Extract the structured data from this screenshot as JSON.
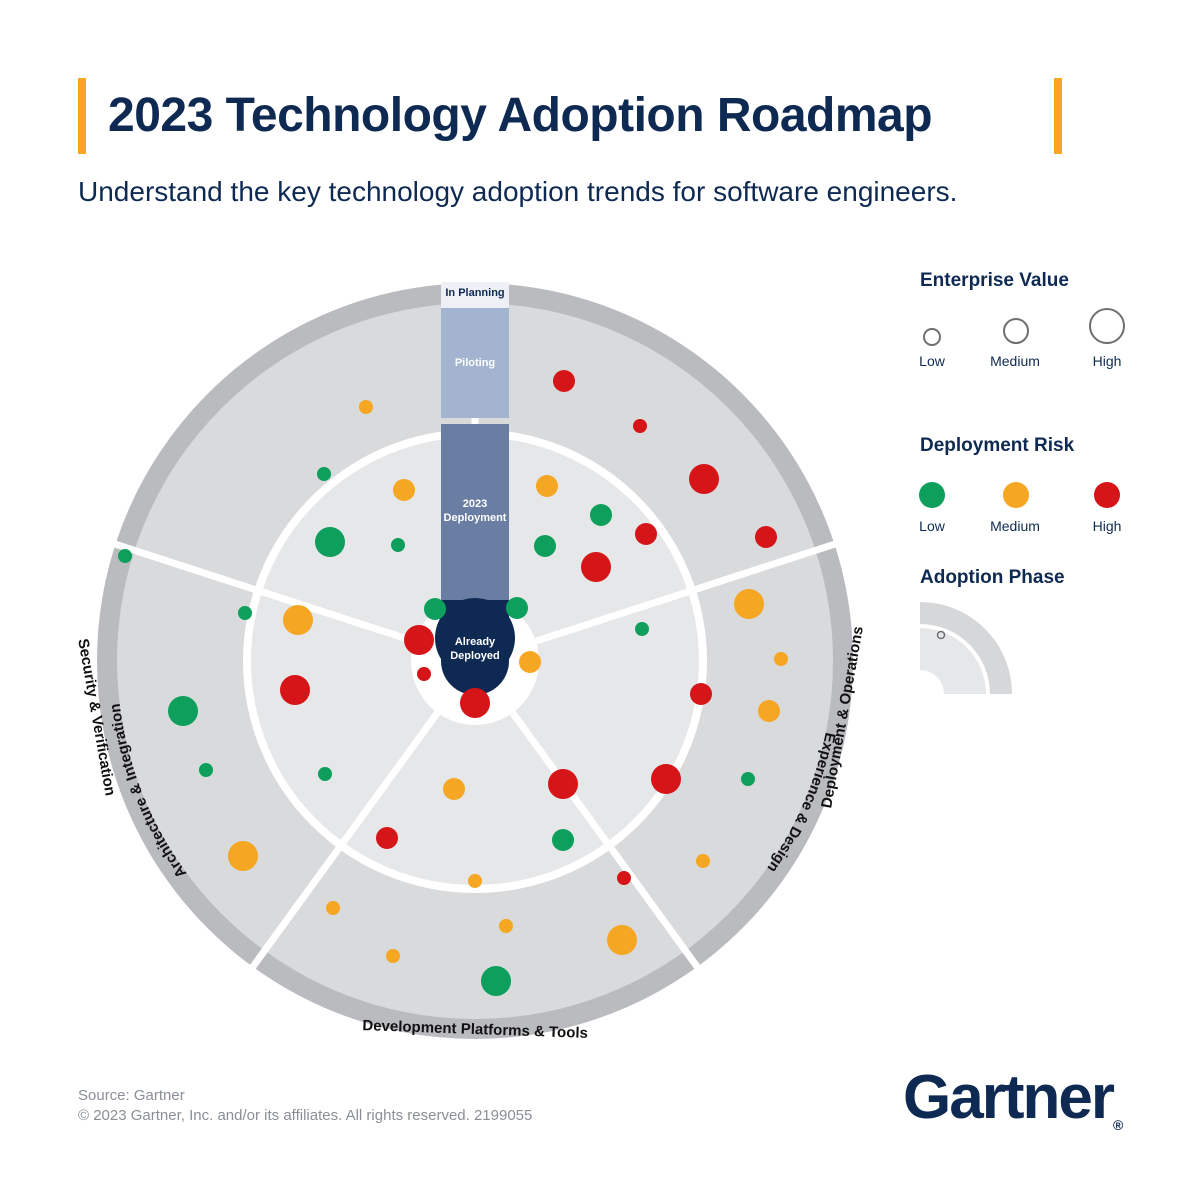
{
  "header": {
    "title": "2023 Technology Adoption Roadmap",
    "subtitle": "Understand the key technology adoption trends for software engineers."
  },
  "roadmap": {
    "phases": {
      "in_planning": "In Planning",
      "piloting": "Piloting",
      "deployment_line1": "2023",
      "deployment_line2": "Deployment",
      "deployed_line1": "Already",
      "deployed_line2": "Deployed"
    },
    "sectors": {
      "experience_design": "Experience & Design",
      "architecture_integration": "Architecture & Integration",
      "deployment_operations": "Deployment & Operations",
      "development_platforms": "Development Platforms & Tools",
      "security_verification": "Security & Verification"
    },
    "colors": {
      "low_risk": "#0e9f5c",
      "medium_risk": "#f5a623",
      "high_risk": "#d61518",
      "navy": "#0e2a52",
      "outer_ring": "#b9bbbf",
      "planning_band": "#d9dadc",
      "pilot_band": "#e6e7e8",
      "deployment_band": "#eeeff0"
    },
    "technologies": [
      {
        "risk": "medium",
        "value": "low"
      },
      {
        "risk": "green",
        "value": "low"
      },
      {
        "risk": "medium",
        "value": "medium"
      },
      {
        "risk": "green",
        "value": "high"
      },
      {
        "risk": "green",
        "value": "low"
      },
      {
        "risk": "green",
        "value": "medium"
      },
      {
        "risk": "green",
        "value": "low"
      },
      {
        "risk": "green",
        "value": "medium"
      },
      {
        "risk": "medium",
        "value": "high"
      },
      {
        "risk": "high",
        "value": "high"
      },
      {
        "risk": "high",
        "value": "high"
      },
      {
        "risk": "high",
        "value": "low"
      },
      {
        "risk": "green",
        "value": "high"
      },
      {
        "risk": "green",
        "value": "low"
      },
      {
        "risk": "medium",
        "value": "high"
      },
      {
        "risk": "medium",
        "value": "medium"
      },
      {
        "risk": "high",
        "value": "medium"
      },
      {
        "risk": "high",
        "value": "low"
      },
      {
        "risk": "high",
        "value": "high"
      },
      {
        "risk": "medium",
        "value": "medium"
      },
      {
        "risk": "green",
        "value": "medium"
      },
      {
        "risk": "green",
        "value": "medium"
      },
      {
        "risk": "high",
        "value": "medium"
      },
      {
        "risk": "high",
        "value": "high"
      },
      {
        "risk": "green",
        "value": "low"
      },
      {
        "risk": "high",
        "value": "medium"
      },
      {
        "risk": "medium",
        "value": "high"
      },
      {
        "risk": "green",
        "value": "low"
      },
      {
        "risk": "high",
        "value": "medium"
      },
      {
        "risk": "medium",
        "value": "low"
      },
      {
        "risk": "medium",
        "value": "medium"
      },
      {
        "risk": "green",
        "value": "low"
      },
      {
        "risk": "high",
        "value": "high"
      },
      {
        "risk": "medium",
        "value": "low"
      },
      {
        "risk": "green",
        "value": "low"
      },
      {
        "risk": "medium",
        "value": "medium"
      },
      {
        "risk": "high",
        "value": "high"
      },
      {
        "risk": "high",
        "value": "medium"
      },
      {
        "risk": "green",
        "value": "medium"
      },
      {
        "risk": "medium",
        "value": "low"
      },
      {
        "risk": "high",
        "value": "low"
      },
      {
        "risk": "medium",
        "value": "low"
      },
      {
        "risk": "medium",
        "value": "low"
      },
      {
        "risk": "medium",
        "value": "low"
      },
      {
        "risk": "green",
        "value": "high"
      },
      {
        "risk": "medium",
        "value": "high"
      },
      {
        "risk": "high",
        "value": "high"
      },
      {
        "risk": "green",
        "value": "medium"
      },
      {
        "risk": "green",
        "value": "low"
      },
      {
        "risk": "medium",
        "value": "low"
      },
      {
        "risk": "green",
        "value": "low"
      },
      {
        "risk": "green",
        "value": "low"
      },
      {
        "risk": "high",
        "value": "medium"
      },
      {
        "risk": "medium",
        "value": "high"
      },
      {
        "risk": "green",
        "value": "high"
      }
    ]
  },
  "legend": {
    "enterprise_value": {
      "title": "Enterprise Value",
      "low": "Low",
      "medium": "Medium",
      "high": "High"
    },
    "deployment_risk": {
      "title": "Deployment Risk",
      "low": "Low",
      "medium": "Medium",
      "high": "High"
    },
    "adoption_phase": {
      "title": "Adoption Phase"
    }
  },
  "footer": {
    "source": "Source: Gartner",
    "copyright": "© 2023 Gartner, Inc. and/or its affiliates. All rights reserved. 2199055",
    "logo": "Gartner",
    "logo_mark": "®"
  }
}
